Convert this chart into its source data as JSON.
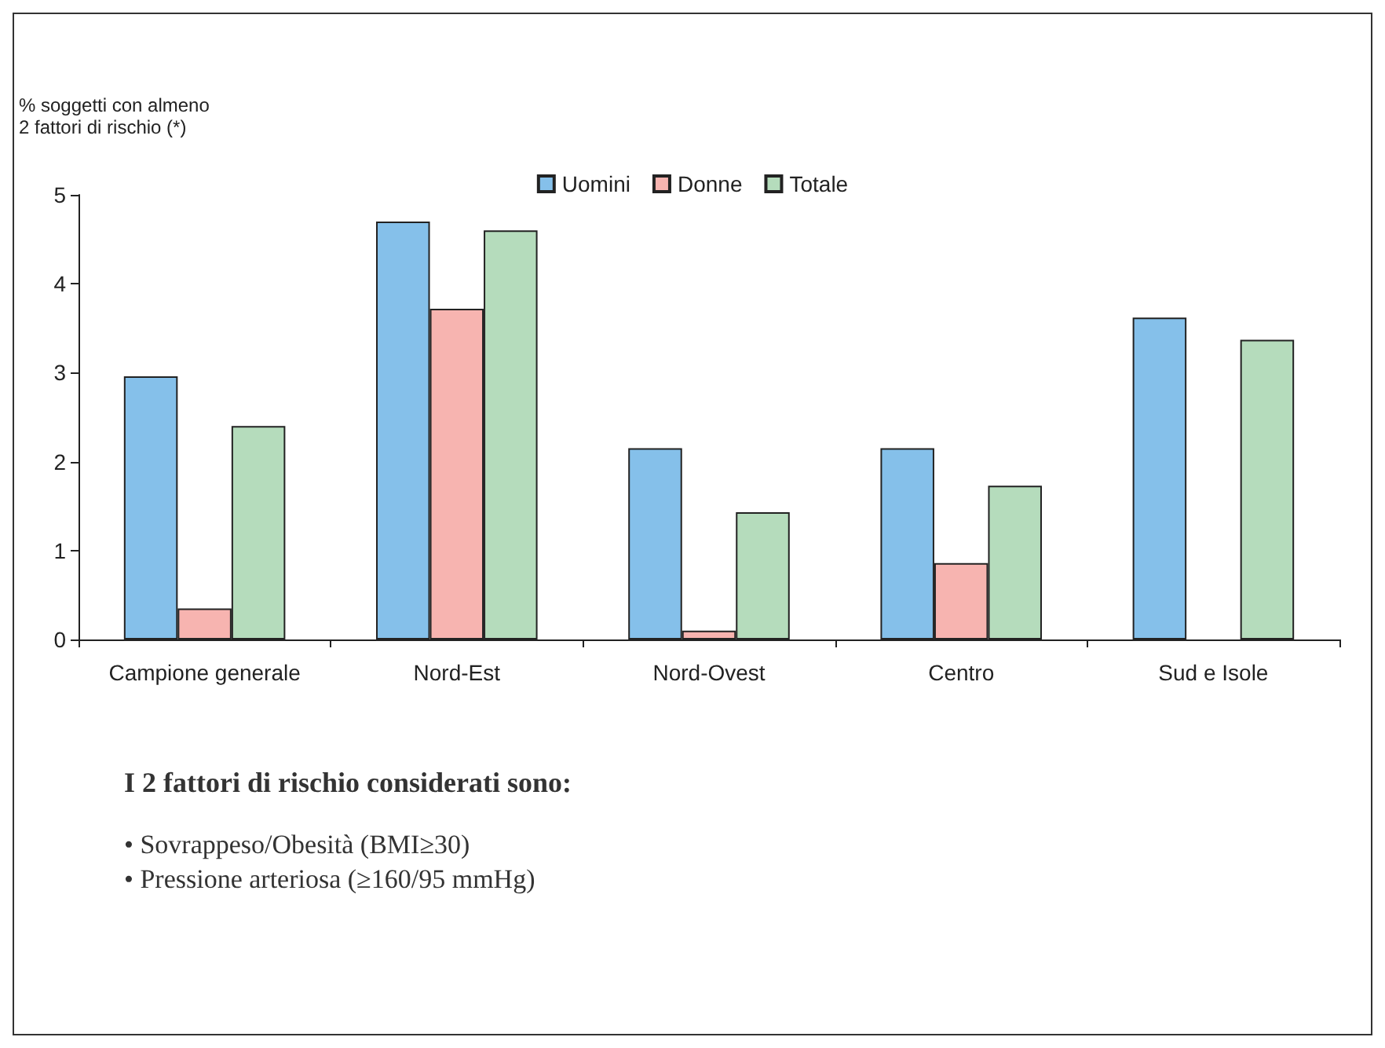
{
  "chart_data": {
    "type": "bar",
    "ylabel": "% soggetti con almeno\n2 fattori di rischio (*)",
    "categories": [
      "Campione generale",
      "Nord-Est",
      "Nord-Ovest",
      "Centro",
      "Sud e Isole"
    ],
    "series": [
      {
        "name": "Uomini",
        "color": "#85c0ea",
        "values": [
          2.96,
          4.7,
          2.15,
          2.15,
          3.62
        ]
      },
      {
        "name": "Donne",
        "color": "#f7b4b0",
        "values": [
          0.35,
          3.72,
          0.1,
          0.86,
          null
        ]
      },
      {
        "name": "Totale",
        "color": "#b5dcbc",
        "values": [
          2.4,
          4.6,
          1.43,
          1.73,
          3.37
        ]
      }
    ],
    "ylim": [
      0,
      5
    ],
    "yticks": [
      0,
      1,
      2,
      3,
      4,
      5
    ],
    "grid": false,
    "legend": "top",
    "annotations": [
      "I 2 fattori di rischio considerati sono:",
      "• Sovrappeso/Obesità (BMI≥30)",
      "• Pressione arteriosa (≥160/95 mmHg)"
    ]
  }
}
